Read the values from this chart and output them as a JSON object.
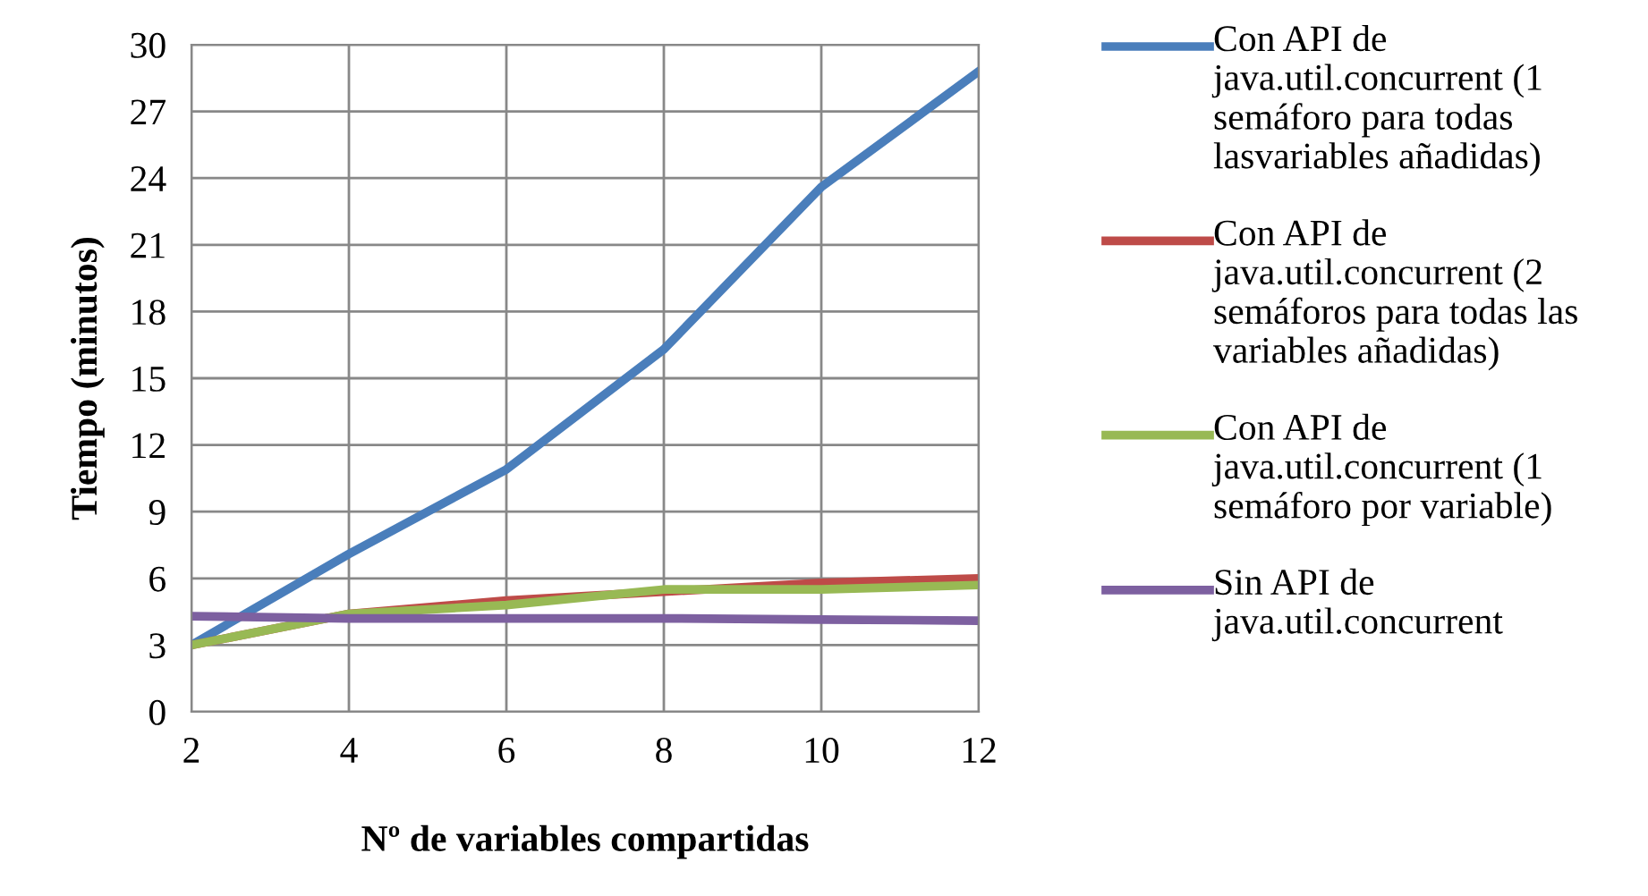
{
  "chart_data": {
    "type": "line",
    "xlabel": "Nº de variables compartidas",
    "ylabel": "Tiempo (minutos)",
    "x": [
      2,
      4,
      6,
      8,
      10,
      12
    ],
    "series": [
      {
        "name": "Con API de java.util.concurrent (1 semáforo para todas lasvariables añadidas)",
        "color": "#4a7ebb",
        "values": [
          3,
          7.1,
          10.9,
          16.3,
          23.6,
          28.8
        ]
      },
      {
        "name": "Con API de java.util.concurrent (2 semáforos para todas las variables añadidas)",
        "color": "#be4b48",
        "values": [
          3,
          4.4,
          5.0,
          5.4,
          5.8,
          6.0
        ]
      },
      {
        "name": "Con API de java.util.concurrent (1 semáforo por variable)",
        "color": "#98b954",
        "values": [
          3,
          4.4,
          4.8,
          5.5,
          5.5,
          5.7
        ]
      },
      {
        "name": "Sin API de java.util.concurrent",
        "color": "#7d60a0",
        "values": [
          4.3,
          4.2,
          4.2,
          4.2,
          4.15,
          4.1
        ]
      }
    ],
    "xlim": [
      2,
      12
    ],
    "xticks": [
      2,
      4,
      6,
      8,
      10,
      12
    ],
    "ylim": [
      0,
      30
    ],
    "yticks": [
      0,
      3,
      6,
      9,
      12,
      15,
      18,
      21,
      24,
      27,
      30
    ],
    "grid": true,
    "legend": "right",
    "marker": "none",
    "line_style": "solid"
  }
}
